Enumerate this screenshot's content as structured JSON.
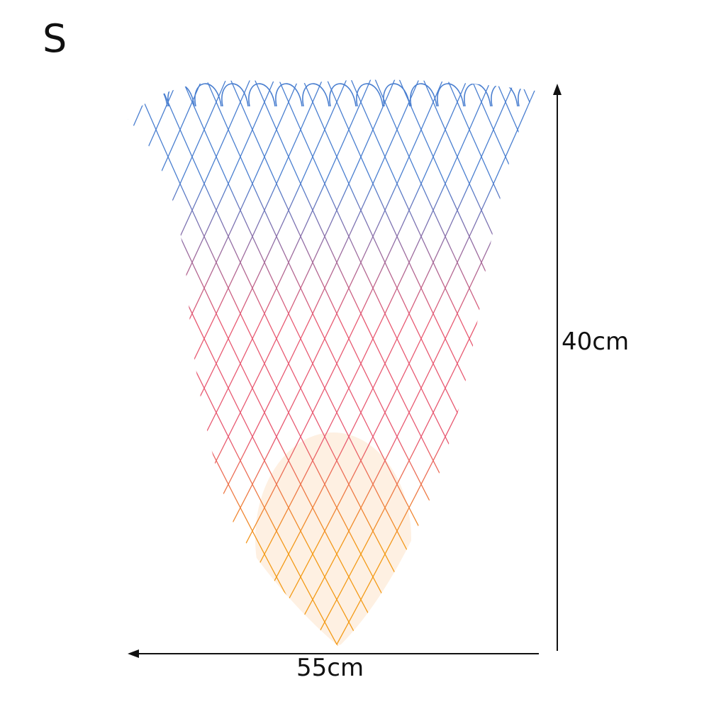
{
  "size_label": "S",
  "dimensions": {
    "height_label": "40cm",
    "width_label": "55cm"
  },
  "net_colors": {
    "top": "#4a7fd0",
    "middle": "#e85a72",
    "bottom": "#f39a16"
  }
}
